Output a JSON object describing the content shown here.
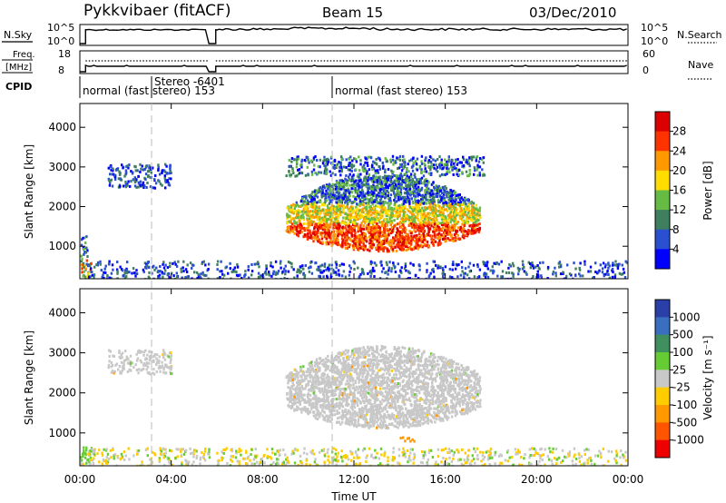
{
  "header": {
    "station": "Pykkvibaer (fitACF)",
    "beam": "Beam 15",
    "date": "03/Dec/2010"
  },
  "noise_panel": {
    "left_label": "N.Sky",
    "right_label": "N.Search",
    "left_ticks": [
      "10^5",
      "10^0"
    ],
    "right_ticks": [
      "10^5",
      "10^0"
    ]
  },
  "freq_panel": {
    "left_label_line1": "Freq.",
    "left_label_line2": "[MHz]",
    "right_label": "Nave",
    "left_ticks": [
      "18",
      "8"
    ],
    "right_ticks": [
      "60",
      "0"
    ]
  },
  "cpid_panel": {
    "label": "CPID",
    "segments": [
      {
        "text": "normal (fast stereo) 153",
        "start_hour": 0
      },
      {
        "text": "Stereo -6401",
        "start_hour": 2.97
      },
      {
        "text": "normal (fast stereo) 153",
        "start_hour": 10.97
      }
    ]
  },
  "x_axis": {
    "label": "Time UT",
    "ticks": [
      "00:00",
      "04:00",
      "08:00",
      "12:00",
      "16:00",
      "20:00",
      "00:00"
    ],
    "tick_hours": [
      0,
      4,
      8,
      12,
      16,
      20,
      24
    ],
    "range_hours": [
      0,
      24
    ],
    "data_gap_hours": [
      5.65,
      5.95
    ]
  },
  "chart_data": [
    {
      "type": "heatmap",
      "quantity": "power",
      "ylabel": "Slant Range [km]",
      "yticks": [
        1000,
        2000,
        3000,
        4000
      ],
      "ylim": [
        180,
        4600
      ],
      "colorbar": {
        "label": "Power [dB]",
        "ticks": [
          "4",
          "8",
          "12",
          "16",
          "20",
          "24",
          "28"
        ],
        "colors": [
          "#0000ff",
          "#2a4fd0",
          "#3f7f5f",
          "#66bb44",
          "#ffdd00",
          "#ff9900",
          "#ff3300",
          "#dd0000"
        ]
      },
      "regions": [
        {
          "name": "early-e-region",
          "hours": [
            0.0,
            0.5
          ],
          "range_km": [
            250,
            700
          ],
          "level": "medium-high"
        },
        {
          "name": "early-ionosphere",
          "hours": [
            0.0,
            0.3
          ],
          "range_km": [
            700,
            1300
          ],
          "level": "low-medium"
        },
        {
          "name": "morning-far-range",
          "hours": [
            1.2,
            4.0
          ],
          "range_km": [
            2500,
            3100
          ],
          "level": "low"
        },
        {
          "name": "main-echo",
          "hours": [
            9.0,
            17.5
          ],
          "range_km": [
            800,
            2800
          ],
          "level": "high"
        },
        {
          "name": "main-echo-upper",
          "hours": [
            9.0,
            17.7
          ],
          "range_km": [
            2800,
            3300
          ],
          "level": "low-medium"
        },
        {
          "name": "near-range-band",
          "hours": [
            0.0,
            24.0
          ],
          "range_km": [
            200,
            650
          ],
          "level": "low"
        }
      ]
    },
    {
      "type": "heatmap",
      "quantity": "velocity",
      "ylabel": "Slant Range [km]",
      "yticks": [
        1000,
        2000,
        3000,
        4000
      ],
      "ylim": [
        180,
        4600
      ],
      "colorbar": {
        "label": "Velocity [m s⁻¹]",
        "ticks": [
          "1000",
          "500",
          "100",
          "25",
          "-25",
          "-100",
          "-500",
          "-1000"
        ],
        "colors": [
          "#2a3fa8",
          "#3a6fbf",
          "#3f8f5f",
          "#66cc33",
          "#c8c8c8",
          "#ffcc00",
          "#ff9900",
          "#ff5500",
          "#ee0000"
        ]
      },
      "regions": [
        {
          "name": "main-echo",
          "hours": [
            9.0,
            17.5
          ],
          "range_km": [
            1100,
            3300
          ],
          "value": "ground-scatter"
        },
        {
          "name": "morning-far-range",
          "hours": [
            1.2,
            4.0
          ],
          "range_km": [
            2500,
            3100
          ],
          "value": "ground-scatter"
        },
        {
          "name": "early-e-region",
          "hours": [
            0.0,
            0.5
          ],
          "range_km": [
            300,
            700
          ],
          "value": "positive-low"
        },
        {
          "name": "flow-patch",
          "hours": [
            14.0,
            14.6
          ],
          "range_km": [
            780,
            920
          ],
          "value": "negative-medium"
        },
        {
          "name": "near-range-band",
          "hours": [
            0.0,
            24.0
          ],
          "range_km": [
            200,
            650
          ],
          "value": "mixed"
        }
      ]
    }
  ]
}
